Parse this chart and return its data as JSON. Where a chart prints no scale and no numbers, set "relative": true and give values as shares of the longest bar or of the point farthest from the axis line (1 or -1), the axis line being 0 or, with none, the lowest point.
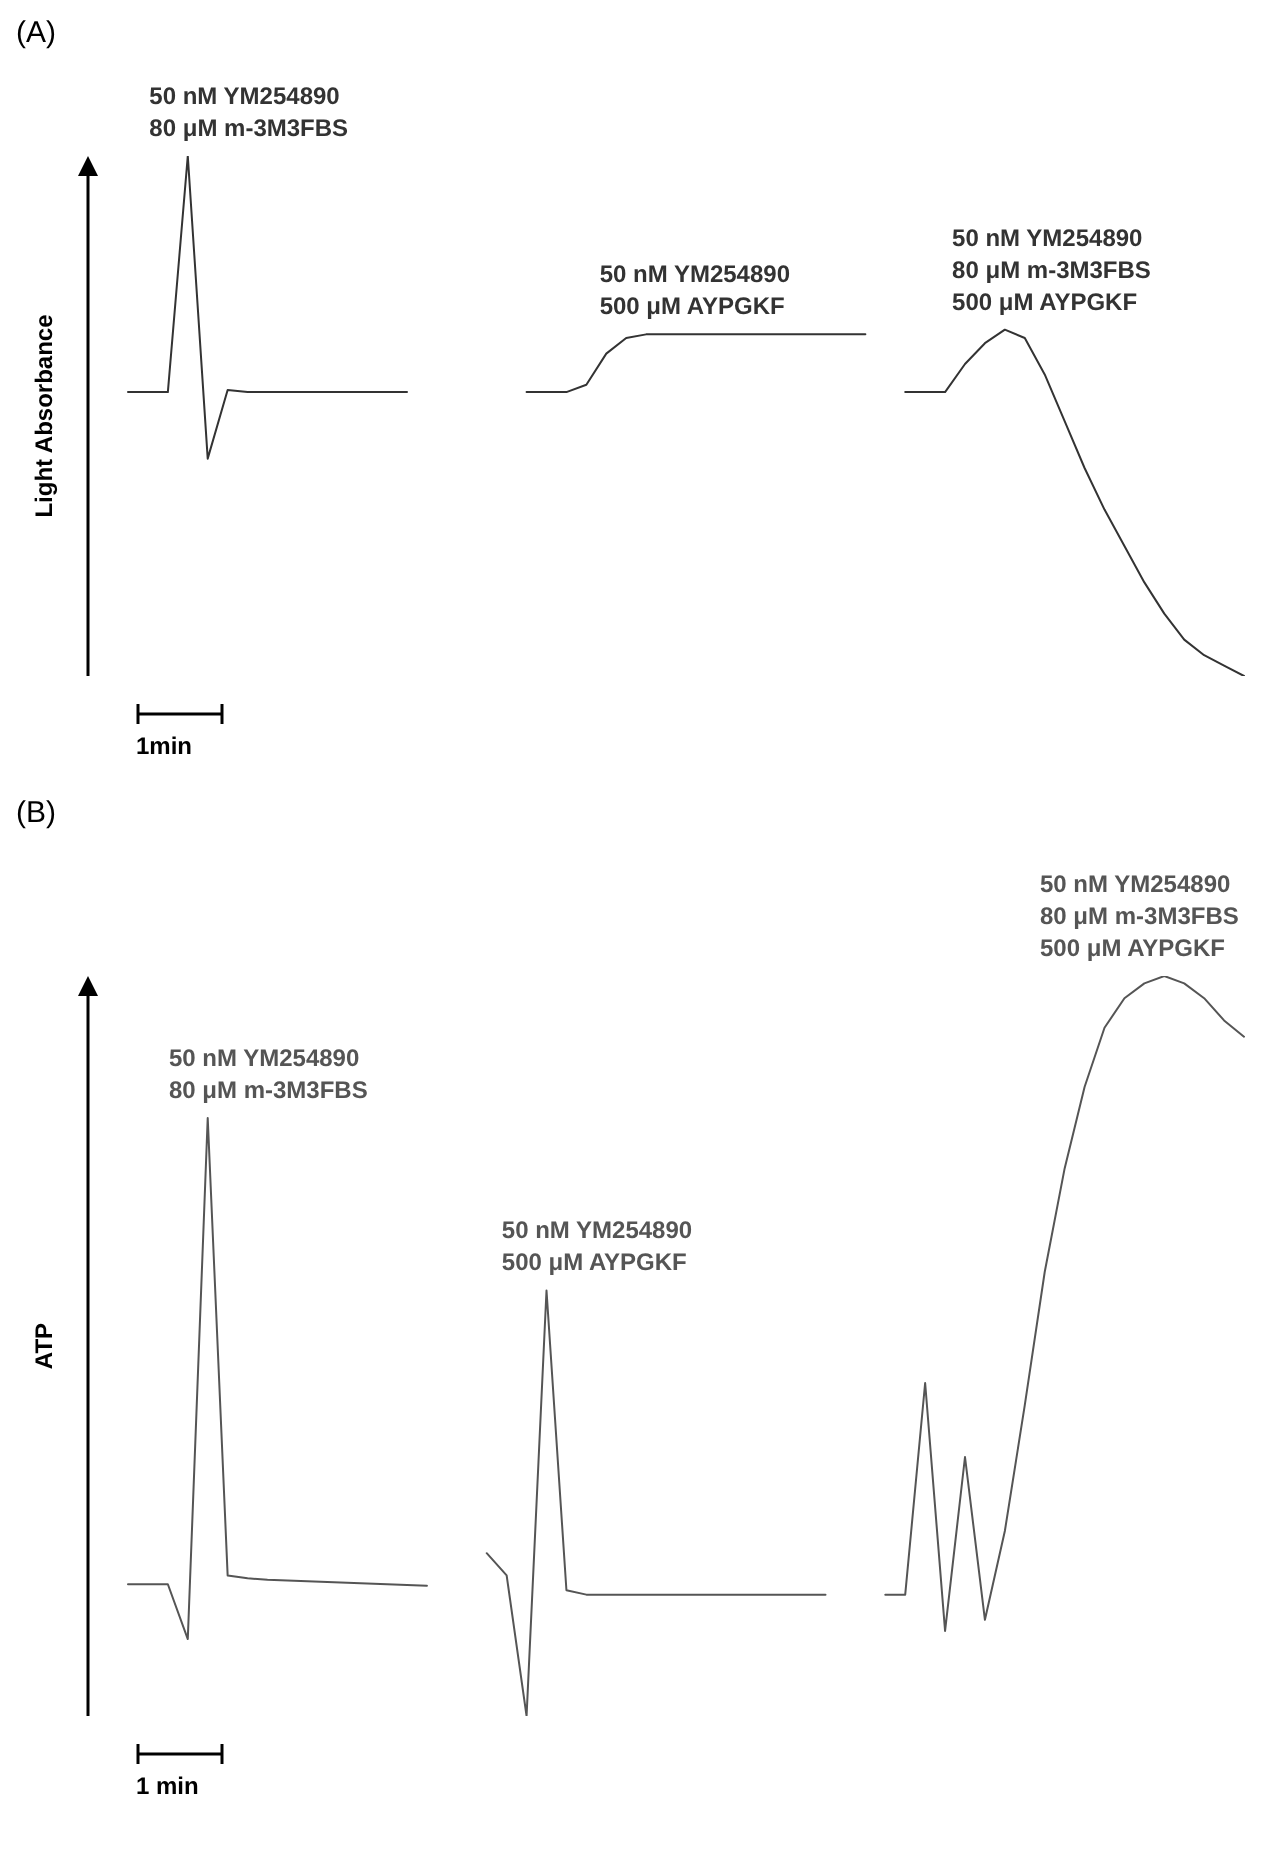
{
  "chart_data": [
    {
      "type": "line",
      "title": "(A)",
      "ylabel": "Light Absorbance",
      "relative": true,
      "annotations": [
        "1min"
      ],
      "categories": [
        null,
        null,
        null,
        null,
        null,
        null,
        null,
        null,
        null,
        null,
        null,
        null,
        null,
        null,
        null,
        null,
        null,
        null,
        null,
        null,
        null,
        null,
        null,
        null,
        null,
        null,
        null,
        null,
        null,
        null,
        null,
        null,
        null,
        null,
        null,
        null,
        null,
        null,
        null,
        null,
        null,
        null,
        null,
        null,
        null,
        null,
        null,
        null,
        null,
        null,
        null,
        null,
        null,
        null,
        null,
        null,
        null
      ],
      "series": [
        {
          "name": "50 nM YM254890\n80 μM m-3M3FBS",
          "color": "#333333",
          "values": [
            0.546,
            0.546,
            0.546,
            1,
            0.418,
            0.55,
            0.546,
            0.546,
            0.546,
            0.546,
            0.546,
            0.546,
            0.546,
            0.546,
            0.546,
            null,
            null,
            null,
            null,
            null,
            null,
            null,
            null,
            null,
            null,
            null,
            null,
            null,
            null,
            null,
            null,
            null,
            null,
            null,
            null,
            null,
            null,
            null,
            null,
            null,
            null,
            null,
            null,
            null,
            null,
            null,
            null,
            null,
            null,
            null,
            null,
            null,
            null,
            null,
            null,
            null,
            null
          ]
        },
        {
          "name": "50 nM YM254890\n500 μM AYPGKF",
          "color": "#333333",
          "values": [
            null,
            null,
            null,
            null,
            null,
            null,
            null,
            null,
            null,
            null,
            null,
            null,
            null,
            null,
            null,
            null,
            null,
            null,
            null,
            null,
            0.546,
            0.546,
            0.546,
            0.56,
            0.62,
            0.65,
            0.657,
            0.657,
            0.657,
            0.657,
            0.657,
            0.657,
            0.657,
            0.657,
            0.657,
            0.657,
            0.657,
            0.657,
            null,
            null,
            null,
            null,
            null,
            null,
            null,
            null,
            null,
            null,
            null,
            null,
            null,
            null,
            null,
            null,
            null,
            null,
            null
          ]
        },
        {
          "name": "50 nM YM254890\n80 μM m-3M3FBS\n500 μM AYPGKF",
          "color": "#333333",
          "values": [
            null,
            null,
            null,
            null,
            null,
            null,
            null,
            null,
            null,
            null,
            null,
            null,
            null,
            null,
            null,
            null,
            null,
            null,
            null,
            null,
            null,
            null,
            null,
            null,
            null,
            null,
            null,
            null,
            null,
            null,
            null,
            null,
            null,
            null,
            null,
            null,
            null,
            null,
            null,
            0.546,
            0.546,
            0.546,
            0.6,
            0.64,
            0.666,
            0.65,
            0.58,
            0.49,
            0.4,
            0.32,
            0.25,
            0.18,
            0.12,
            0.07,
            0.04,
            0.02,
            0
          ]
        }
      ]
    },
    {
      "type": "line",
      "title": "(B)",
      "ylabel": "ATP",
      "relative": true,
      "annotations": [
        "1 min"
      ],
      "categories": [
        null,
        null,
        null,
        null,
        null,
        null,
        null,
        null,
        null,
        null,
        null,
        null,
        null,
        null,
        null,
        null,
        null,
        null,
        null,
        null,
        null,
        null,
        null,
        null,
        null,
        null,
        null,
        null,
        null,
        null,
        null,
        null,
        null,
        null,
        null,
        null,
        null,
        null,
        null,
        null,
        null,
        null,
        null,
        null,
        null,
        null,
        null,
        null,
        null,
        null,
        null,
        null,
        null,
        null,
        null,
        null,
        null
      ],
      "series": [
        {
          "name": "50 nM YM254890\n80 μM m-3M3FBS",
          "color": "#555555",
          "values": [
            0.178,
            0.178,
            0.178,
            0.104,
            0.808,
            0.19,
            0.186,
            0.184,
            0.183,
            0.182,
            0.181,
            0.18,
            0.179,
            0.178,
            0.177,
            0.176,
            null,
            null,
            null,
            null,
            null,
            null,
            null,
            null,
            null,
            null,
            null,
            null,
            null,
            null,
            null,
            null,
            null,
            null,
            null,
            null,
            null,
            null,
            null,
            null,
            null,
            null,
            null,
            null,
            null,
            null,
            null,
            null,
            null,
            null,
            null,
            null,
            null,
            null,
            null,
            null,
            null
          ]
        },
        {
          "name": "50 nM YM254890\n500 μM AYPGKF",
          "color": "#555555",
          "values": [
            null,
            null,
            null,
            null,
            null,
            null,
            null,
            null,
            null,
            null,
            null,
            null,
            null,
            null,
            null,
            null,
            null,
            null,
            0.22,
            0.19,
            0,
            0.575,
            0.17,
            0.164,
            0.164,
            0.164,
            0.164,
            0.164,
            0.164,
            0.164,
            0.164,
            0.164,
            0.164,
            0.164,
            0.164,
            0.164,
            null,
            null,
            null,
            null,
            null,
            null,
            null,
            null,
            null,
            null,
            null,
            null,
            null,
            null,
            null,
            null,
            null,
            null,
            null,
            null,
            null
          ]
        },
        {
          "name": "50 nM YM254890\n80 μM m-3M3FBS\n500 μM AYPGKF",
          "color": "#555555",
          "values": [
            null,
            null,
            null,
            null,
            null,
            null,
            null,
            null,
            null,
            null,
            null,
            null,
            null,
            null,
            null,
            null,
            null,
            null,
            null,
            null,
            null,
            null,
            null,
            null,
            null,
            null,
            null,
            null,
            null,
            null,
            null,
            null,
            null,
            null,
            null,
            null,
            null,
            null,
            0.164,
            0.164,
            0.45,
            0.115,
            0.35,
            0.13,
            0.25,
            0.42,
            0.6,
            0.74,
            0.85,
            0.93,
            0.97,
            0.99,
            1,
            0.99,
            0.97,
            0.94,
            0.918
          ]
        }
      ]
    }
  ]
}
